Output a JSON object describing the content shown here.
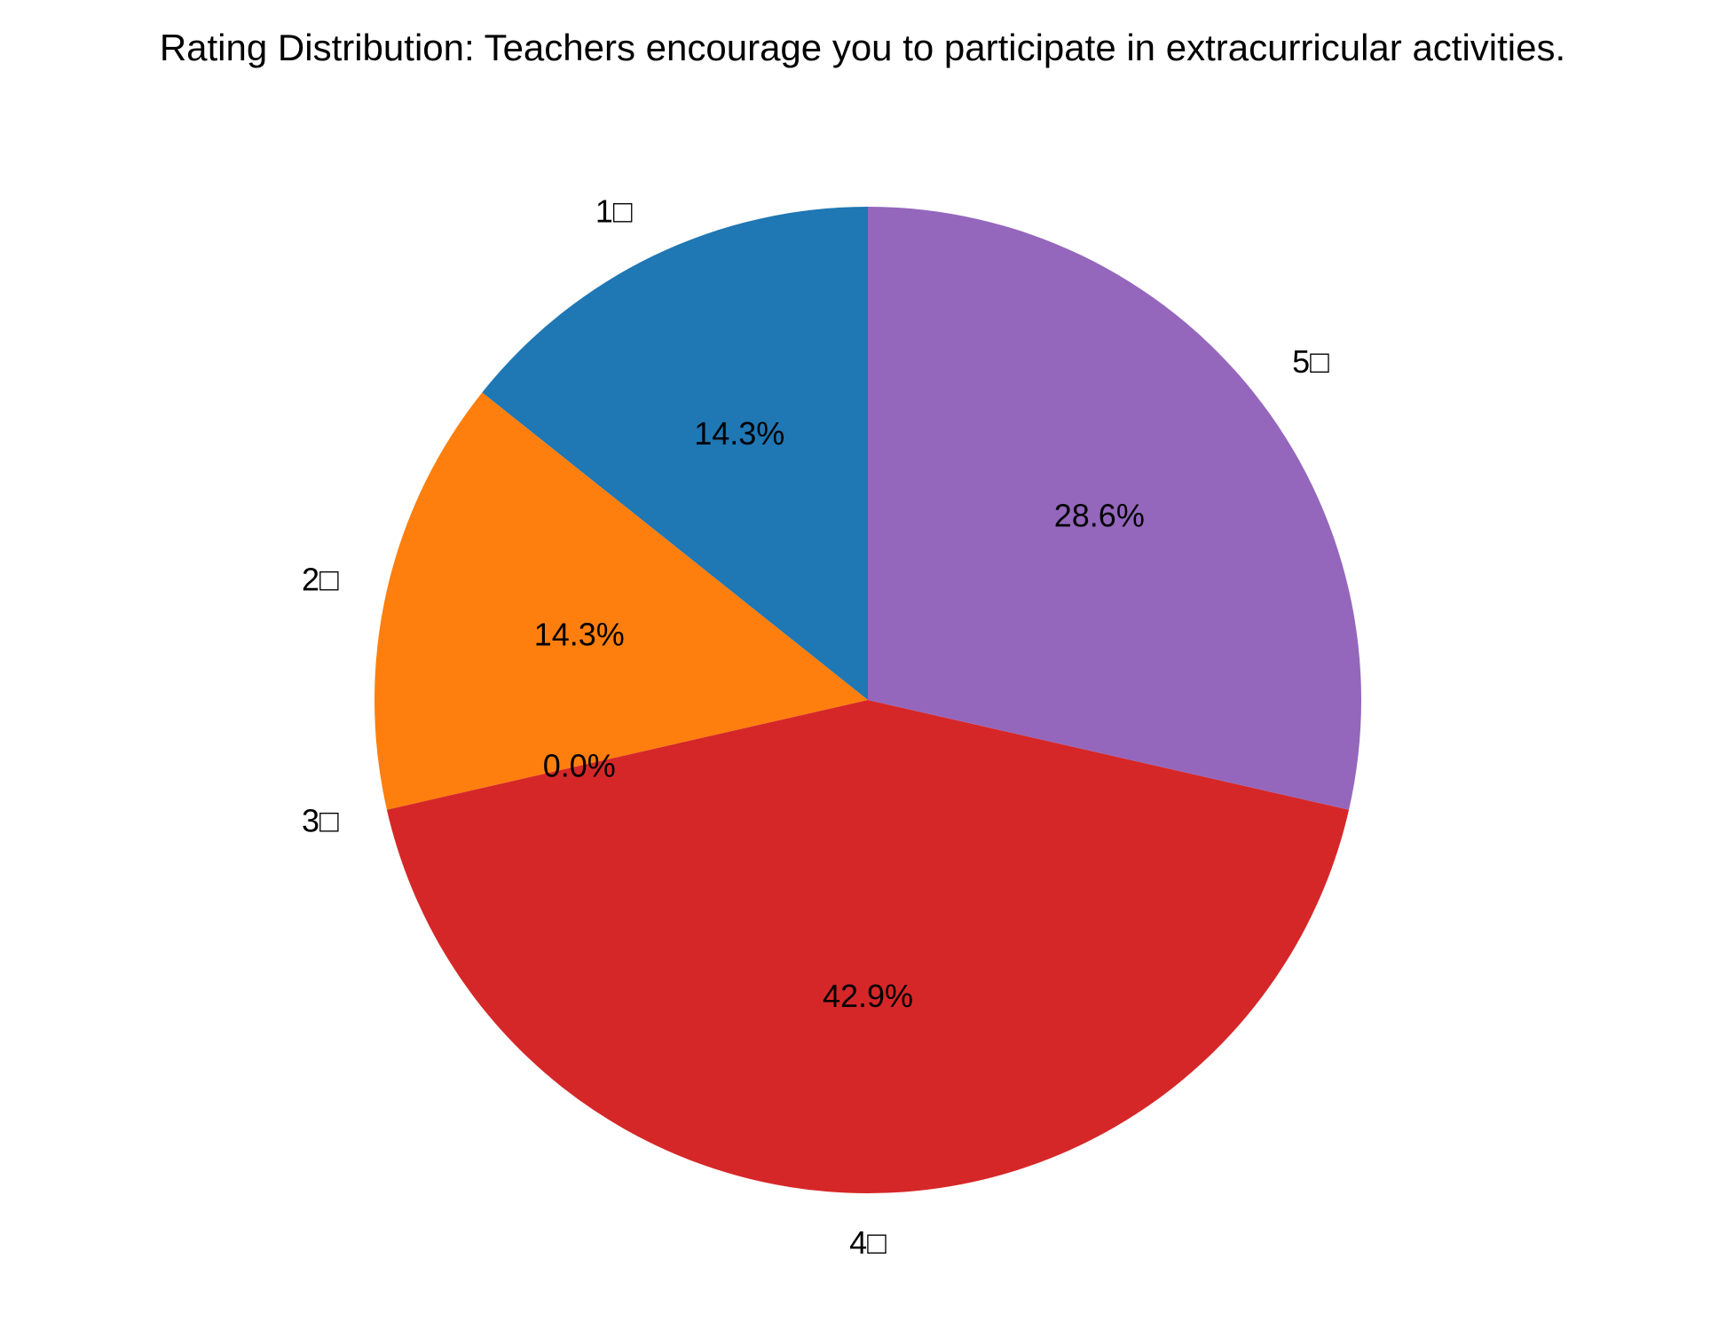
{
  "chart_data": {
    "type": "pie",
    "title": "Rating Distribution: Teachers encourage you to participate in extracurricular activities.",
    "categories": [
      "1□",
      "2□",
      "3□",
      "4□",
      "5□"
    ],
    "values": [
      14.3,
      14.3,
      0.0,
      42.9,
      28.6
    ],
    "value_labels": [
      "14.3%",
      "14.3%",
      "0.0%",
      "42.9%",
      "28.6%"
    ],
    "colors": [
      "#1f77b4",
      "#ff7f0e",
      "#2ca02c",
      "#d62728",
      "#9467bd"
    ],
    "start_angle_deg": 90,
    "direction": "counterclockwise"
  }
}
